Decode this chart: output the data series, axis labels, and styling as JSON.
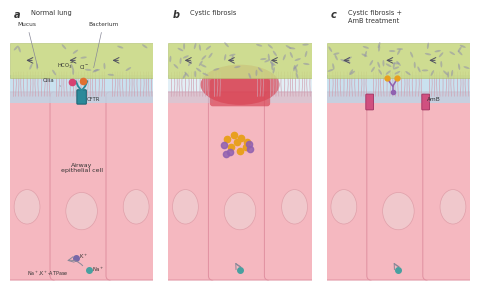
{
  "title_a": "Normal lung",
  "title_b": "Cystic fibrosis",
  "title_c": "Cystic fibrosis +\nAmB treatment",
  "label_a": "a",
  "label_b": "b",
  "label_c": "c",
  "bg_color": "#ffffff",
  "mucus_fill": "#c8d882",
  "mucus_border": "#a8b860",
  "airway_fluid_color": "#b8d8ea",
  "cell_body_color": "#f5b8c0",
  "cell_edge_color": "#e090a0",
  "cell_nucleus_color": "#f0c8cc",
  "cell_nucleus_edge": "#e0a0aa",
  "cftr_color": "#2a8a9a",
  "cftr_edge": "#1a6070",
  "bacteria_color": "#9090a8",
  "ion_hco3_color": "#d84070",
  "ion_cl_color": "#e07030",
  "ion_k_color": "#7868a8",
  "ion_na_color": "#48a0a0",
  "ion_dots_orange": "#e8a020",
  "ion_dots_purple": "#9060b0",
  "amb_color": "#d05080",
  "amb_edge": "#a03060",
  "arrow_color": "#505060",
  "text_color": "#333333",
  "inflammation_color": "#d84858",
  "cilia_color": "#d0a0b0",
  "connector_color": "#888898"
}
